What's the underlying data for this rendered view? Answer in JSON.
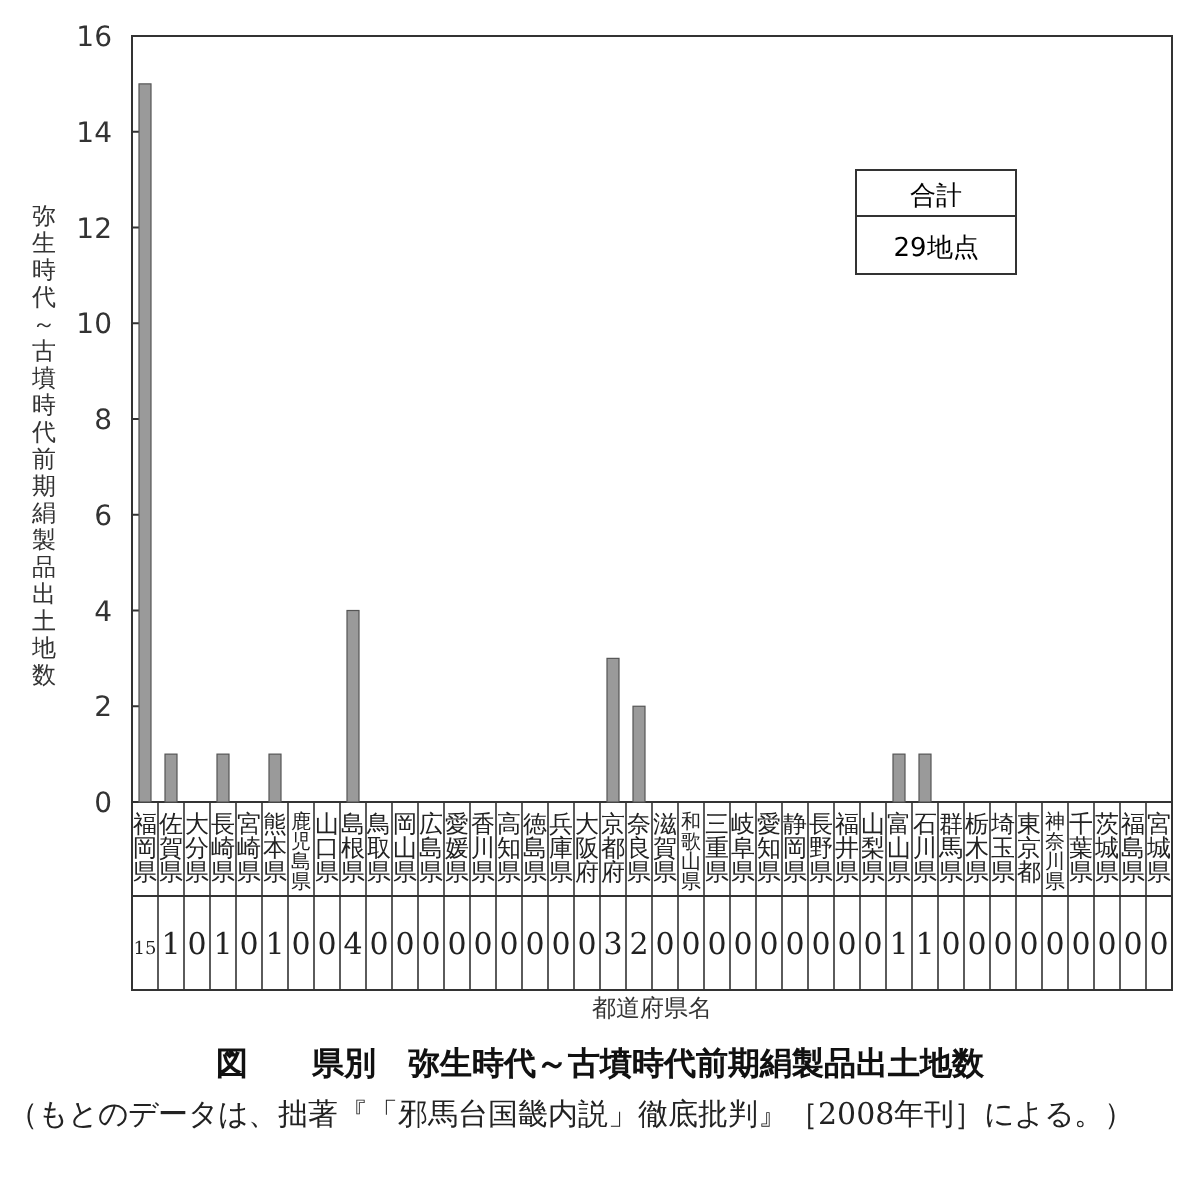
{
  "chart_data": {
    "type": "bar",
    "title": "図　　県別　弥生時代～古墳時代前期絹製品出土地数",
    "xlabel": "都道府県名",
    "ylabel": "弥生時代～古墳時代前期絹製品出土地数",
    "categories": [
      "福岡県",
      "佐賀県",
      "大分県",
      "長崎県",
      "宮崎県",
      "熊本県",
      "鹿児島県",
      "山口県",
      "島根県",
      "鳥取県",
      "岡山県",
      "広島県",
      "愛媛県",
      "香川県",
      "高知県",
      "徳島県",
      "兵庫県",
      "大阪府",
      "京都府",
      "奈良県",
      "滋賀県",
      "和歌山県",
      "三重県",
      "岐阜県",
      "愛知県",
      "静岡県",
      "長野県",
      "福井県",
      "山梨県",
      "富山県",
      "石川県",
      "群馬県",
      "栃木県",
      "埼玉県",
      "東京都",
      "神奈川県",
      "千葉県",
      "茨城県",
      "福島県",
      "宮城県"
    ],
    "values": [
      15,
      1,
      0,
      1,
      0,
      1,
      0,
      0,
      4,
      0,
      0,
      0,
      0,
      0,
      0,
      0,
      0,
      0,
      3,
      2,
      0,
      0,
      0,
      0,
      0,
      0,
      0,
      0,
      0,
      1,
      1,
      0,
      0,
      0,
      0,
      0,
      0,
      0,
      0,
      0
    ],
    "color": "#9a9a9a",
    "ylim": [
      0,
      16
    ],
    "yticks": [
      0,
      2,
      4,
      6,
      8,
      10,
      12,
      14,
      16
    ],
    "data_labels": true,
    "annotations": [
      "合計",
      "29地点",
      "（もとのデータは、拙著『「邪馬台国畿内説」徹底批判』［2008年刊］による。）"
    ]
  }
}
